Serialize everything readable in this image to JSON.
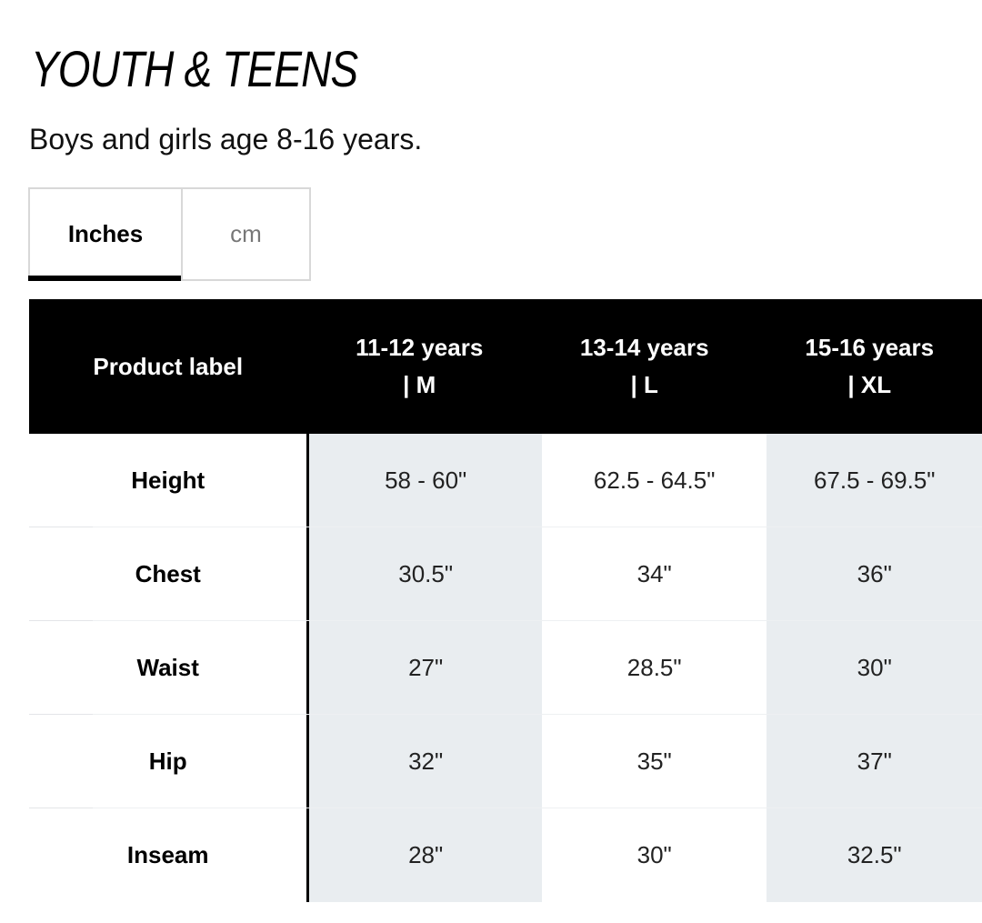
{
  "header": {
    "title": "YOUTH & TEENS",
    "subtitle": "Boys and girls age 8-16 years."
  },
  "unit_toggle": {
    "options": [
      "Inches",
      "cm"
    ],
    "selected": "Inches"
  },
  "size_table": {
    "columns": [
      {
        "label": "Product label"
      },
      {
        "line1": "11-12 years",
        "line2": "| M"
      },
      {
        "line1": "13-14 years",
        "line2": "| L"
      },
      {
        "line1": "15-16 years",
        "line2": "| XL"
      }
    ],
    "rows": [
      {
        "label": "Height",
        "values": [
          "58 - 60\"",
          "62.5 - 64.5\"",
          "67.5 - 69.5\""
        ]
      },
      {
        "label": "Chest",
        "values": [
          "30.5\"",
          "34\"",
          "36\""
        ]
      },
      {
        "label": "Waist",
        "values": [
          "27\"",
          "28.5\"",
          "30\""
        ]
      },
      {
        "label": "Hip",
        "values": [
          "32\"",
          "35\"",
          "37\""
        ]
      },
      {
        "label": "Inseam",
        "values": [
          "28\"",
          "30\"",
          "32.5\""
        ]
      }
    ]
  },
  "colors": {
    "header_bg": "#000000",
    "alt_column_bg": "#e9edf0",
    "border": "#d8d8d8"
  }
}
